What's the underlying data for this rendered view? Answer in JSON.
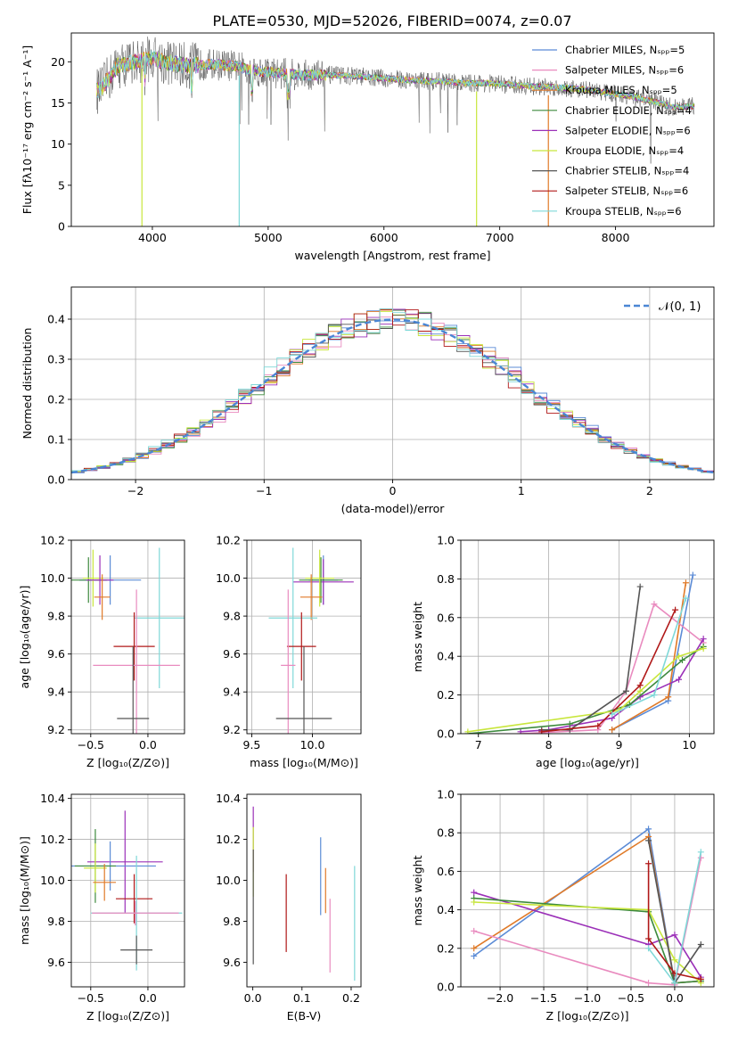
{
  "figure": {
    "title": "PLATE=0530, MJD=52026, FIBERID=0074, z=0.07"
  },
  "chart_data": [
    {
      "id": "spectrum",
      "type": "line",
      "xlabel": "wavelength [Angstrom, rest frame]",
      "ylabel": "Flux [fλ10⁻¹⁷ erg cm⁻² s⁻¹ A⁻¹]",
      "xlim": [
        3300,
        8850
      ],
      "ylim": [
        0,
        23.5
      ],
      "xticks": [
        4000,
        5000,
        6000,
        7000,
        8000
      ],
      "yticks": [
        0,
        5,
        10,
        15,
        20
      ],
      "legend_position": "top-right",
      "series": [
        {
          "name": "Chabrier MILES, Nₛₚₚ=5",
          "color": "#5b8bd6"
        },
        {
          "name": "Salpeter MILES, Nₛₚₚ=6",
          "color": "#e98bbf"
        },
        {
          "name": "Kroupa MILES, Nₛₚₚ=5",
          "color": "#e07a28"
        },
        {
          "name": "Chabrier ELODIE, Nₛₚₚ=4",
          "color": "#3d8a3d"
        },
        {
          "name": "Salpeter ELODIE, Nₛₚₚ=6",
          "color": "#9b30b8"
        },
        {
          "name": "Kroupa ELODIE, Nₛₚₚ=4",
          "color": "#c8e63c"
        },
        {
          "name": "Chabrier STELIB, Nₛₚₚ=4",
          "color": "#555555"
        },
        {
          "name": "Salpeter STELIB, Nₛₚₚ=6",
          "color": "#b01818"
        },
        {
          "name": "Kroupa STELIB, Nₛₚₚ=6",
          "color": "#7fd8d8"
        }
      ],
      "continuum": {
        "x": [
          3550,
          3700,
          3850,
          4000,
          4100,
          4300,
          4500,
          4700,
          4900,
          5100,
          5300,
          5500,
          5700,
          5900,
          6100,
          6300,
          6500,
          6700,
          6900,
          7100,
          7300,
          7500,
          7700,
          7900,
          8100,
          8300,
          8500,
          8700
        ],
        "y": [
          16.5,
          19.5,
          20.0,
          20.5,
          20.0,
          19.5,
          19.7,
          19.5,
          18.9,
          18.6,
          18.4,
          18.4,
          18.3,
          18.1,
          17.9,
          17.7,
          17.6,
          17.4,
          17.4,
          17.2,
          17.0,
          16.9,
          16.7,
          16.3,
          15.9,
          15.3,
          14.5,
          14.6
        ]
      },
      "dips": [
        {
          "x": 3910,
          "y": 0,
          "color": "#c8e63c"
        },
        {
          "x": 4750,
          "y": 0,
          "color": "#7fd8d8"
        },
        {
          "x": 6800,
          "y": 0,
          "color": "#c8e63c"
        },
        {
          "x": 7420,
          "y": 0,
          "color": "#e07a28"
        }
      ]
    },
    {
      "id": "residuals",
      "type": "area",
      "xlabel": "(data-model)/error",
      "ylabel": "Normed distribution",
      "xlim": [
        -2.5,
        2.5
      ],
      "ylim": [
        0,
        0.48
      ],
      "xticks": [
        -2,
        -1,
        0,
        1,
        2
      ],
      "yticks": [
        0.0,
        0.1,
        0.2,
        0.3,
        0.4
      ],
      "grid": true,
      "legend": "𝒩(0, 1)",
      "legend_position": "top-right",
      "normal": {
        "mean": 0,
        "std": 1,
        "color": "#4a86d4"
      }
    },
    {
      "id": "age-vs-z",
      "type": "scatter",
      "xlabel": "Z [log₁₀(Z/Z⊙)]",
      "ylabel": "age  [log₁₀(age/yr)]",
      "xlim": [
        -0.67,
        0.32
      ],
      "ylim": [
        9.18,
        10.2
      ],
      "xticks": [
        -0.5,
        0.0
      ],
      "yticks": [
        9.2,
        9.4,
        9.6,
        9.8,
        10.0,
        10.2
      ],
      "grid": true,
      "points": [
        {
          "x": -0.33,
          "xerr": 0.27,
          "y": 9.99,
          "yerr": 0.13,
          "color": "#5b8bd6"
        },
        {
          "x": -0.52,
          "xerr": 0.16,
          "y": 9.99,
          "yerr": 0.12,
          "color": "#3d8a3d"
        },
        {
          "x": -0.48,
          "xerr": 0.09,
          "y": 10.0,
          "yerr": 0.15,
          "color": "#c8e63c"
        },
        {
          "x": -0.42,
          "xerr": 0.12,
          "y": 9.99,
          "yerr": 0.13,
          "color": "#9b30b8"
        },
        {
          "x": -0.4,
          "xerr": 0.07,
          "y": 9.9,
          "yerr": 0.12,
          "color": "#e07a28"
        },
        {
          "x": 0.1,
          "xerr": 0.22,
          "y": 9.79,
          "yerr": 0.37,
          "color": "#7fd8d8"
        },
        {
          "x": -0.12,
          "xerr": 0.18,
          "y": 9.64,
          "yerr": 0.18,
          "color": "#b01818"
        },
        {
          "x": -0.1,
          "xerr": 0.38,
          "y": 9.54,
          "yerr": 0.4,
          "color": "#e98bbf"
        },
        {
          "x": -0.13,
          "xerr": 0.14,
          "y": 9.26,
          "yerr": 0.38,
          "color": "#555555"
        }
      ]
    },
    {
      "id": "age-vs-mass",
      "type": "scatter",
      "xlabel": "mass [log₁₀(M/M⊙)]",
      "ylabel": "",
      "xlim": [
        9.46,
        10.4
      ],
      "ylim": [
        9.18,
        10.2
      ],
      "xticks": [
        9.5,
        10.0
      ],
      "yticks": [
        9.2,
        9.4,
        9.6,
        9.8,
        10.0,
        10.2
      ],
      "grid": true,
      "points": [
        {
          "x": 10.09,
          "xerr": 0.12,
          "y": 9.99,
          "yerr": 0.13,
          "color": "#5b8bd6"
        },
        {
          "x": 10.09,
          "xerr": 0.25,
          "y": 9.98,
          "yerr": 0.12,
          "color": "#9b30b8"
        },
        {
          "x": 10.07,
          "xerr": 0.18,
          "y": 9.99,
          "yerr": 0.12,
          "color": "#3d8a3d"
        },
        {
          "x": 10.06,
          "xerr": 0.12,
          "y": 10.0,
          "yerr": 0.15,
          "color": "#c8e63c"
        },
        {
          "x": 9.99,
          "xerr": 0.09,
          "y": 9.9,
          "yerr": 0.12,
          "color": "#e07a28"
        },
        {
          "x": 9.84,
          "xerr": 0.2,
          "y": 9.79,
          "yerr": 0.37,
          "color": "#7fd8d8"
        },
        {
          "x": 9.91,
          "xerr": 0.12,
          "y": 9.64,
          "yerr": 0.18,
          "color": "#b01818"
        },
        {
          "x": 9.8,
          "xerr": 0.06,
          "y": 9.54,
          "yerr": 0.4,
          "color": "#e98bbf"
        },
        {
          "x": 9.93,
          "xerr": 0.23,
          "y": 9.26,
          "yerr": 0.38,
          "color": "#555555"
        }
      ]
    },
    {
      "id": "mass-weight-vs-age",
      "type": "line",
      "xlabel": "age  [log₁₀(age/yr)]",
      "ylabel": "mass weight",
      "xlim": [
        6.75,
        10.35
      ],
      "ylim": [
        0,
        1.0
      ],
      "xticks": [
        7,
        8,
        9,
        10
      ],
      "yticks": [
        0.0,
        0.2,
        0.4,
        0.6,
        0.8,
        1.0
      ],
      "grid": true,
      "series": [
        {
          "color": "#5b8bd6",
          "x": [
            8.9,
            9.7,
            10.05
          ],
          "y": [
            0.02,
            0.17,
            0.82
          ]
        },
        {
          "color": "#e07a28",
          "x": [
            8.9,
            9.7,
            9.95
          ],
          "y": [
            0.02,
            0.19,
            0.78
          ]
        },
        {
          "color": "#e98bbf",
          "x": [
            7.6,
            8.7,
            9.1,
            9.5,
            10.2
          ],
          "y": [
            0.0,
            0.02,
            0.22,
            0.67,
            0.47
          ]
        },
        {
          "color": "#9b30b8",
          "x": [
            7.6,
            8.0,
            8.9,
            9.3,
            9.85,
            10.2
          ],
          "y": [
            0.01,
            0.02,
            0.08,
            0.19,
            0.28,
            0.49
          ]
        },
        {
          "color": "#3d8a3d",
          "x": [
            6.85,
            8.3,
            9.15,
            9.9,
            10.2
          ],
          "y": [
            0.0,
            0.05,
            0.15,
            0.38,
            0.45
          ]
        },
        {
          "color": "#c8e63c",
          "x": [
            6.85,
            9.0,
            9.3,
            9.85,
            10.2
          ],
          "y": [
            0.01,
            0.12,
            0.22,
            0.4,
            0.44
          ]
        },
        {
          "color": "#555555",
          "x": [
            7.9,
            8.3,
            9.1,
            9.3
          ],
          "y": [
            0.02,
            0.02,
            0.22,
            0.76
          ]
        },
        {
          "color": "#b01818",
          "x": [
            7.9,
            8.7,
            9.3,
            9.8
          ],
          "y": [
            0.01,
            0.04,
            0.25,
            0.64
          ]
        },
        {
          "color": "#7fd8d8",
          "x": [
            8.9,
            9.5,
            9.95
          ],
          "y": [
            0.1,
            0.2,
            0.7
          ]
        }
      ]
    },
    {
      "id": "mass-vs-z",
      "type": "scatter",
      "xlabel": "Z [log₁₀(Z/Z⊙)]",
      "ylabel": "mass [log₁₀(M/M⊙)]",
      "xlim": [
        -0.67,
        0.32
      ],
      "ylim": [
        9.48,
        10.42
      ],
      "xticks": [
        -0.5,
        0.0
      ],
      "yticks": [
        9.6,
        9.8,
        10.0,
        10.2,
        10.4
      ],
      "grid": true,
      "points": [
        {
          "x": -0.2,
          "xerr": 0.33,
          "y": 10.09,
          "yerr": 0.25,
          "color": "#9b30b8"
        },
        {
          "x": -0.33,
          "xerr": 0.4,
          "y": 10.07,
          "yerr": 0.12,
          "color": "#5b8bd6"
        },
        {
          "x": -0.46,
          "xerr": 0.18,
          "y": 10.07,
          "yerr": 0.18,
          "color": "#3d8a3d"
        },
        {
          "x": -0.46,
          "xerr": 0.1,
          "y": 10.06,
          "yerr": 0.12,
          "color": "#c8e63c"
        },
        {
          "x": -0.38,
          "xerr": 0.1,
          "y": 9.99,
          "yerr": 0.09,
          "color": "#e07a28"
        },
        {
          "x": -0.12,
          "xerr": 0.16,
          "y": 9.91,
          "yerr": 0.12,
          "color": "#b01818"
        },
        {
          "x": -0.1,
          "xerr": 0.4,
          "y": 9.84,
          "yerr": 0.28,
          "color": "#7fd8d8"
        },
        {
          "x": -0.11,
          "xerr": 0.38,
          "y": 9.84,
          "yerr": 0.06,
          "color": "#e98bbf"
        },
        {
          "x": -0.1,
          "xerr": 0.14,
          "y": 9.66,
          "yerr": 0.07,
          "color": "#555555"
        }
      ]
    },
    {
      "id": "mass-vs-ebv",
      "type": "scatter",
      "xlabel": "E(B-V)",
      "ylabel": "",
      "xlim": [
        -0.012,
        0.22
      ],
      "ylim": [
        9.48,
        10.42
      ],
      "xticks": [
        0.0,
        0.1,
        0.2
      ],
      "yticks": [
        9.6,
        9.8,
        10.0,
        10.2,
        10.4
      ],
      "grid": false,
      "points": [
        {
          "x": 0.001,
          "y": 10.2,
          "yerr": 0.16,
          "color": "#9b30b8"
        },
        {
          "x": 0.001,
          "y": 10.09,
          "yerr": 0.17,
          "color": "#c8e63c"
        },
        {
          "x": 0.001,
          "y": 9.87,
          "yerr": 0.28,
          "color": "#555555"
        },
        {
          "x": 0.068,
          "y": 9.84,
          "yerr": 0.19,
          "color": "#b01818"
        },
        {
          "x": 0.138,
          "y": 10.02,
          "yerr": 0.19,
          "color": "#5b8bd6"
        },
        {
          "x": 0.148,
          "y": 9.95,
          "yerr": 0.11,
          "color": "#e07a28"
        },
        {
          "x": 0.157,
          "y": 9.73,
          "yerr": 0.18,
          "color": "#e98bbf"
        },
        {
          "x": 0.207,
          "y": 9.79,
          "yerr": 0.28,
          "color": "#7fd8d8"
        }
      ]
    },
    {
      "id": "mass-weight-vs-z",
      "type": "line",
      "xlabel": "Z [log₁₀(Z/Z⊙)]",
      "ylabel": "mass weight",
      "xlim": [
        -2.45,
        0.45
      ],
      "ylim": [
        0,
        1.0
      ],
      "xticks": [
        -2.0,
        -1.5,
        -1.0,
        -0.5,
        0.0
      ],
      "yticks": [
        0.0,
        0.2,
        0.4,
        0.6,
        0.8,
        1.0
      ],
      "grid": true,
      "series": [
        {
          "color": "#5b8bd6",
          "x": [
            -2.3,
            -0.3,
            0.0,
            0.3
          ],
          "y": [
            0.16,
            0.82,
            0.02,
            0.03
          ]
        },
        {
          "color": "#e07a28",
          "x": [
            -2.3,
            -0.3,
            0.0,
            0.3
          ],
          "y": [
            0.2,
            0.78,
            0.02,
            0.03
          ]
        },
        {
          "color": "#e98bbf",
          "x": [
            -2.3,
            -0.3,
            0.0,
            0.3
          ],
          "y": [
            0.29,
            0.02,
            0.01,
            0.67
          ]
        },
        {
          "color": "#9b30b8",
          "x": [
            -2.3,
            -0.3,
            0.0,
            0.3
          ],
          "y": [
            0.49,
            0.22,
            0.27,
            0.05
          ]
        },
        {
          "color": "#3d8a3d",
          "x": [
            -2.3,
            -0.3,
            0.0,
            0.3
          ],
          "y": [
            0.46,
            0.39,
            0.02,
            0.03
          ]
        },
        {
          "color": "#c8e63c",
          "x": [
            -2.3,
            -0.3,
            0.0,
            0.3
          ],
          "y": [
            0.44,
            0.4,
            0.14,
            0.02
          ]
        },
        {
          "color": "#555555",
          "x": [
            -0.3,
            0.0,
            0.3
          ],
          "y": [
            0.76,
            0.02,
            0.22
          ]
        },
        {
          "color": "#b01818",
          "x": [
            -0.3,
            -0.3,
            0.0,
            0.3
          ],
          "y": [
            0.64,
            0.25,
            0.07,
            0.04
          ]
        },
        {
          "color": "#7fd8d8",
          "x": [
            -0.3,
            0.0,
            0.3
          ],
          "y": [
            0.2,
            0.02,
            0.7
          ]
        }
      ]
    }
  ]
}
